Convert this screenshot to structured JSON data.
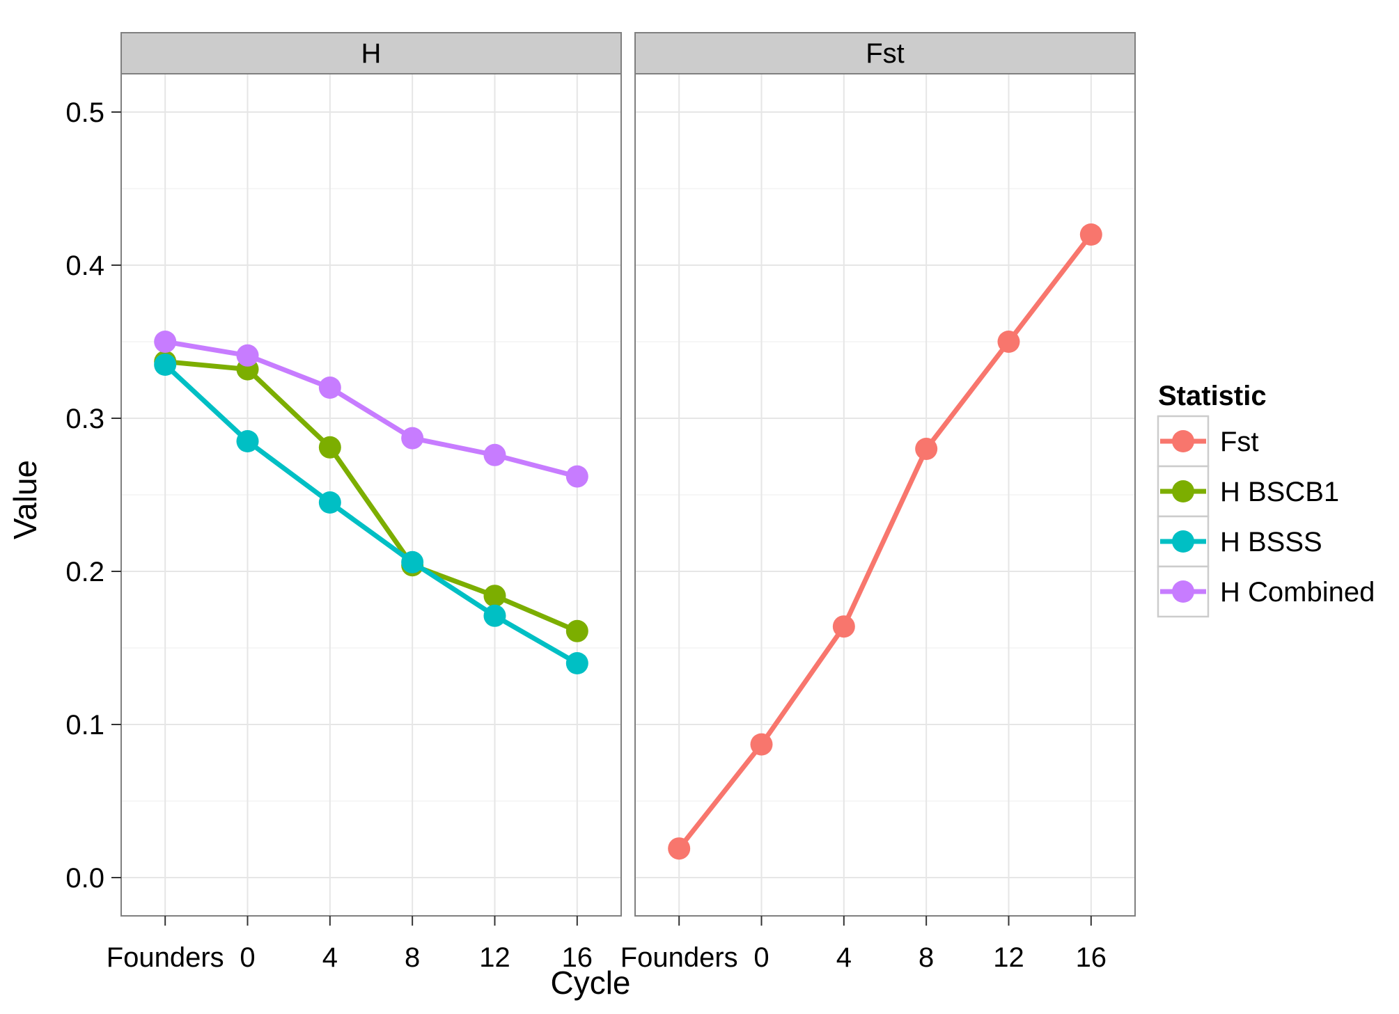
{
  "chart_data": {
    "type": "line",
    "xlabel": "Cycle",
    "ylabel": "Value",
    "categories": [
      "Founders",
      "0",
      "4",
      "8",
      "12",
      "16"
    ],
    "ylim": [
      -0.025,
      0.525
    ],
    "yticks": [
      "0.0",
      "0.1",
      "0.2",
      "0.3",
      "0.4",
      "0.5"
    ],
    "ytick_values": [
      0.0,
      0.1,
      0.2,
      0.3,
      0.4,
      0.5
    ],
    "grid": true,
    "legend": {
      "title": "Statistic",
      "placement": "right",
      "entries": [
        {
          "name": "Fst",
          "color": "#F8766D"
        },
        {
          "name": "H BSCB1",
          "color": "#7CAE00"
        },
        {
          "name": "H BSSS",
          "color": "#00BFC4"
        },
        {
          "name": "H Combined",
          "color": "#C77CFF"
        }
      ]
    },
    "panels": [
      {
        "strip": "H",
        "series": [
          {
            "name": "H BSCB1",
            "color": "#7CAE00",
            "values": [
              0.337,
              0.332,
              0.281,
              0.204,
              0.184,
              0.161
            ]
          },
          {
            "name": "H BSSS",
            "color": "#00BFC4",
            "values": [
              0.335,
              0.285,
              0.245,
              0.206,
              0.171,
              0.14
            ]
          },
          {
            "name": "H Combined",
            "color": "#C77CFF",
            "values": [
              0.35,
              0.341,
              0.32,
              0.287,
              0.276,
              0.262
            ]
          }
        ]
      },
      {
        "strip": "Fst",
        "series": [
          {
            "name": "Fst",
            "color": "#F8766D",
            "values": [
              0.019,
              0.087,
              0.164,
              0.28,
              0.35,
              0.42
            ]
          }
        ]
      }
    ]
  }
}
